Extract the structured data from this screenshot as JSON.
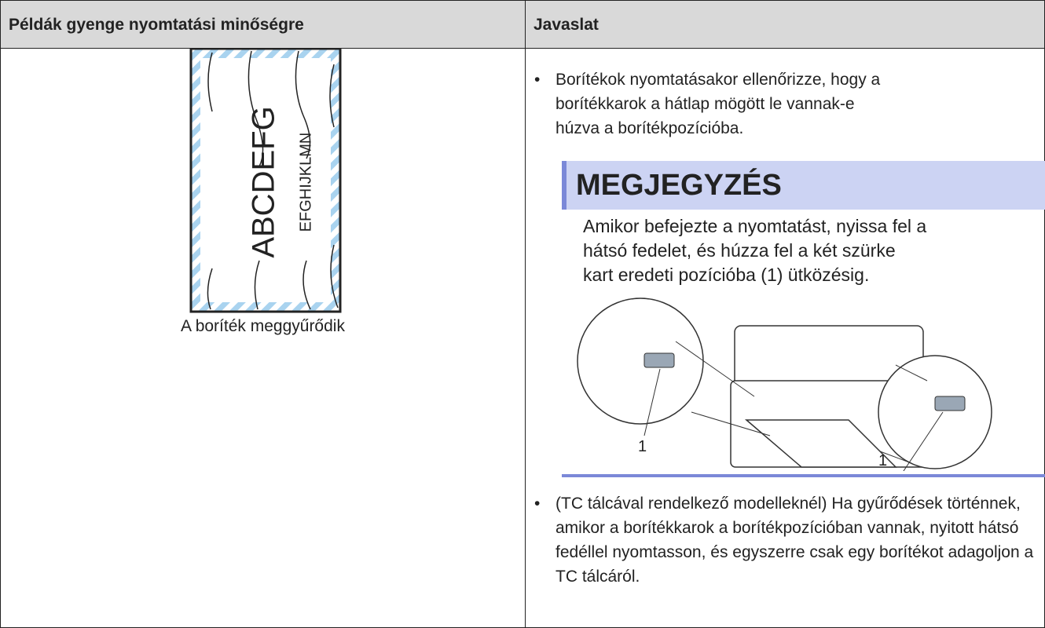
{
  "table": {
    "header": [
      "Példák gyenge nyomtatási minőségre",
      "Javaslat"
    ],
    "rows": [
      {
        "example": {
          "image_text": [
            "ABCDEFG",
            "EFGHIJKLMN"
          ],
          "caption": "A boríték meggyűrődik"
        },
        "suggestion": {
          "bullets": [
            "Borítékok nyomtatásakor ellenőrizze, hogy a borítékkarok a hátlap mögött le vannak-e húzva a borítékpozícióba.",
            "(TC tálcával rendelkező modelleknél) Ha gyűrődések történnek, amikor a borítékkarok a borítékpozícióban vannak, nyitott hátsó fedéllel nyomtasson, és egyszerre csak egy borítékot adagoljon a TC tálcáról."
          ],
          "note": {
            "title": "MEGJEGYZÉS",
            "text": "Amikor befejezte a nyomtatást, nyissa fel a hátsó fedelet, és húzza fel a két szürke kart eredeti pozícióba (1) ütközésig.",
            "figure_labels": [
              "1",
              "1"
            ]
          }
        }
      }
    ]
  }
}
